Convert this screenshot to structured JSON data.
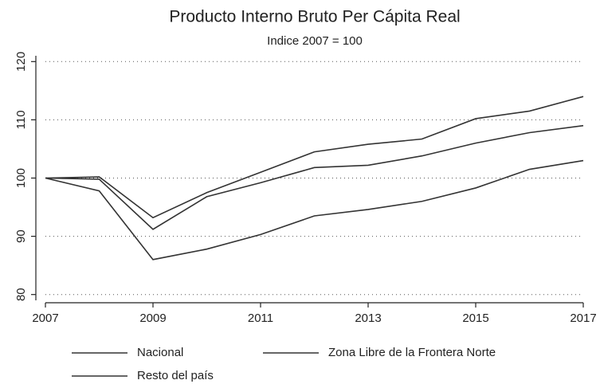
{
  "chart_data": {
    "type": "line",
    "title": "Producto Interno Bruto Per Cápita Real",
    "subtitle": "Indice 2007 = 100",
    "x": [
      2007,
      2008,
      2009,
      2010,
      2011,
      2012,
      2013,
      2014,
      2015,
      2016,
      2017
    ],
    "series": [
      {
        "name": "Nacional",
        "color": "#333333",
        "values": [
          100,
          99.8,
          91.2,
          96.8,
          99.2,
          101.8,
          102.2,
          103.8,
          106,
          107.8,
          109
        ]
      },
      {
        "name": "Zona Libre de la Frontera Norte",
        "color": "#333333",
        "values": [
          100,
          97.8,
          86,
          87.8,
          90.3,
          93.5,
          94.6,
          96,
          98.3,
          101.5,
          103
        ]
      },
      {
        "name": "Resto del país",
        "color": "#333333",
        "values": [
          100,
          100.2,
          93.2,
          97.5,
          101,
          104.5,
          105.8,
          106.7,
          110.2,
          111.5,
          114
        ]
      }
    ],
    "xlim": [
      2007,
      2017
    ],
    "xticks": [
      2007,
      2009,
      2011,
      2013,
      2015,
      2017
    ],
    "ylim": [
      79,
      121
    ],
    "yticks": [
      80,
      90,
      100,
      110,
      120
    ],
    "grid": true,
    "legend": "bottom"
  }
}
